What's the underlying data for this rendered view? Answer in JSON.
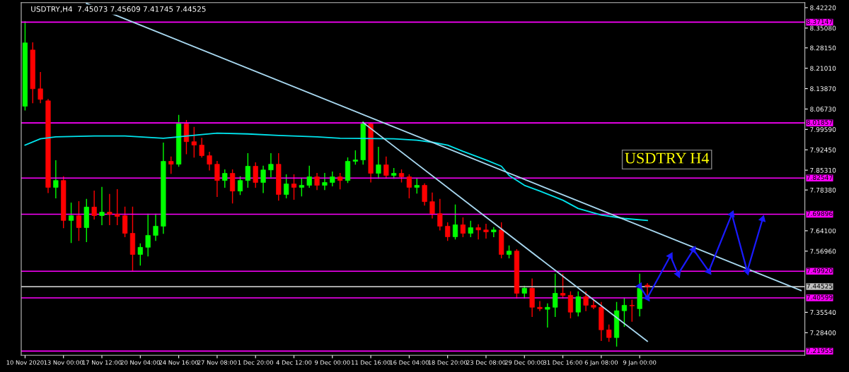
{
  "chart_data": {
    "type": "candlestick",
    "title": "USDTRY,H4  7.45073 7.45609 7.41745 7.44525",
    "annotations": [
      "USDTRY H4"
    ],
    "categories": [
      "10 Nov 2020",
      null,
      null,
      null,
      null,
      "13 Nov 00:00",
      null,
      null,
      null,
      null,
      "17 Nov 12:00",
      null,
      null,
      null,
      null,
      "20 Nov 04:00",
      null,
      null,
      null,
      null,
      "24 Nov 16:00",
      null,
      null,
      null,
      null,
      "27 Nov 08:00",
      null,
      null,
      null,
      null,
      "1 Dec 20:00",
      null,
      null,
      null,
      null,
      "4 Dec 12:00",
      null,
      null,
      null,
      null,
      "9 Dec 00:00",
      null,
      null,
      null,
      null,
      "11 Dec 16:00",
      null,
      null,
      null,
      null,
      "16 Dec 04:00",
      null,
      null,
      null,
      null,
      "18 Dec 20:00",
      null,
      null,
      null,
      null,
      "23 Dec 08:00",
      null,
      null,
      null,
      null,
      "29 Dec 00:00",
      null,
      null,
      null,
      null,
      "31 Dec 16:00",
      null,
      null,
      null,
      null,
      "6 Jan 08:00",
      null,
      null,
      null,
      null,
      "9 Jan 00:00",
      null,
      null,
      null,
      null,
      null,
      null,
      null,
      null,
      null,
      null,
      null,
      null,
      null,
      null,
      null,
      null,
      null,
      null,
      null,
      null,
      null
    ],
    "ohlc": [
      [
        8.077,
        8.373,
        8.064,
        8.299
      ],
      [
        8.274,
        8.299,
        8.089,
        8.138
      ],
      [
        8.138,
        8.195,
        8.089,
        8.101
      ],
      [
        8.096,
        8.101,
        7.775,
        7.793
      ],
      [
        7.793,
        7.886,
        7.756,
        7.817
      ],
      [
        7.817,
        7.83,
        7.652,
        7.677
      ],
      [
        7.677,
        7.738,
        7.6,
        7.694
      ],
      [
        7.694,
        7.743,
        7.607,
        7.652
      ],
      [
        7.652,
        7.751,
        7.603,
        7.724
      ],
      [
        7.724,
        7.78,
        7.682,
        7.694
      ],
      [
        7.694,
        7.793,
        7.662,
        7.706
      ],
      [
        7.706,
        7.768,
        7.662,
        7.699
      ],
      [
        7.699,
        7.785,
        7.662,
        7.691
      ],
      [
        7.694,
        7.724,
        7.62,
        7.632
      ],
      [
        7.632,
        7.724,
        7.501,
        7.558
      ],
      [
        7.558,
        7.595,
        7.521,
        7.583
      ],
      [
        7.583,
        7.699,
        7.553,
        7.625
      ],
      [
        7.625,
        7.699,
        7.607,
        7.657
      ],
      [
        7.657,
        7.948,
        7.632,
        7.884
      ],
      [
        7.884,
        7.899,
        7.842,
        7.874
      ],
      [
        7.874,
        8.045,
        7.867,
        8.015
      ],
      [
        8.015,
        8.027,
        7.911,
        7.953
      ],
      [
        7.953,
        8.003,
        7.899,
        7.941
      ],
      [
        7.941,
        7.965,
        7.899,
        7.904
      ],
      [
        7.904,
        7.916,
        7.854,
        7.874
      ],
      [
        7.874,
        7.884,
        7.761,
        7.817
      ],
      [
        7.817,
        7.854,
        7.793,
        7.842
      ],
      [
        7.842,
        7.854,
        7.738,
        7.78
      ],
      [
        7.78,
        7.83,
        7.768,
        7.817
      ],
      [
        7.817,
        7.911,
        7.793,
        7.867
      ],
      [
        7.867,
        7.879,
        7.793,
        7.81
      ],
      [
        7.81,
        7.867,
        7.775,
        7.854
      ],
      [
        7.854,
        7.911,
        7.83,
        7.874
      ],
      [
        7.874,
        7.911,
        7.748,
        7.768
      ],
      [
        7.768,
        7.837,
        7.756,
        7.805
      ],
      [
        7.805,
        7.837,
        7.751,
        7.793
      ],
      [
        7.793,
        7.822,
        7.763,
        7.8
      ],
      [
        7.8,
        7.867,
        7.793,
        7.83
      ],
      [
        7.83,
        7.842,
        7.785,
        7.8
      ],
      [
        7.8,
        7.842,
        7.785,
        7.81
      ],
      [
        7.81,
        7.847,
        7.798,
        7.83
      ],
      [
        7.83,
        7.842,
        7.788,
        7.817
      ],
      [
        7.817,
        7.896,
        7.81,
        7.884
      ],
      [
        7.884,
        7.921,
        7.874,
        7.889
      ],
      [
        7.889,
        8.022,
        7.874,
        8.015
      ],
      [
        8.015,
        8.02,
        7.812,
        7.842
      ],
      [
        7.842,
        7.933,
        7.825,
        7.872
      ],
      [
        7.872,
        7.899,
        7.825,
        7.835
      ],
      [
        7.835,
        7.859,
        7.825,
        7.842
      ],
      [
        7.842,
        7.854,
        7.812,
        7.83
      ],
      [
        7.83,
        7.837,
        7.756,
        7.793
      ],
      [
        7.793,
        7.822,
        7.773,
        7.8
      ],
      [
        7.8,
        7.805,
        7.731,
        7.743
      ],
      [
        7.743,
        7.773,
        7.686,
        7.701
      ],
      [
        7.701,
        7.751,
        7.644,
        7.657
      ],
      [
        7.657,
        7.669,
        7.607,
        7.62
      ],
      [
        7.62,
        7.731,
        7.612,
        7.662
      ],
      [
        7.662,
        7.686,
        7.62,
        7.632
      ],
      [
        7.632,
        7.674,
        7.62,
        7.652
      ],
      [
        7.652,
        7.662,
        7.612,
        7.644
      ],
      [
        7.644,
        7.664,
        7.615,
        7.637
      ],
      [
        7.637,
        7.652,
        7.62,
        7.644
      ],
      [
        7.644,
        7.669,
        7.546,
        7.558
      ],
      [
        7.558,
        7.588,
        7.546,
        7.57
      ],
      [
        7.57,
        7.575,
        7.405,
        7.422
      ],
      [
        7.422,
        7.447,
        7.405,
        7.44
      ],
      [
        7.44,
        7.472,
        7.341,
        7.373
      ],
      [
        7.373,
        7.393,
        7.361,
        7.368
      ],
      [
        7.366,
        7.385,
        7.304,
        7.373
      ],
      [
        7.373,
        7.489,
        7.341,
        7.422
      ],
      [
        7.422,
        7.489,
        7.405,
        7.415
      ],
      [
        7.415,
        7.427,
        7.336,
        7.356
      ],
      [
        7.356,
        7.427,
        7.343,
        7.41
      ],
      [
        7.41,
        7.427,
        7.361,
        7.38
      ],
      [
        7.38,
        7.398,
        7.368,
        7.373
      ],
      [
        7.373,
        7.39,
        7.257,
        7.294
      ],
      [
        7.294,
        7.311,
        7.254,
        7.267
      ],
      [
        7.267,
        7.39,
        7.237,
        7.361
      ],
      [
        7.361,
        7.405,
        7.306,
        7.38
      ],
      [
        7.38,
        7.398,
        7.324,
        7.378
      ],
      [
        7.368,
        7.489,
        7.343,
        7.44
      ],
      [
        7.45073,
        7.45609,
        7.41745,
        7.44525
      ],
      null,
      null,
      null,
      null,
      null,
      null,
      null,
      null,
      null,
      null,
      null,
      null,
      null,
      null,
      null,
      null,
      null,
      null,
      null,
      null
    ],
    "series": [
      {
        "type": "line",
        "color": "#00e5ee",
        "values": [
          7.941,
          null,
          7.963,
          null,
          7.97,
          null,
          null,
          null,
          null,
          7.973,
          null,
          null,
          null,
          7.973,
          null,
          null,
          null,
          null,
          7.965,
          null,
          7.97,
          null,
          null,
          7.978,
          null,
          7.983,
          null,
          null,
          null,
          7.98,
          null,
          null,
          null,
          7.975,
          null,
          null,
          null,
          null,
          7.97,
          null,
          null,
          7.965,
          null,
          null,
          null,
          null,
          null,
          null,
          7.963,
          null,
          null,
          7.958,
          null,
          7.951,
          null,
          7.941,
          null,
          7.919,
          null,
          null,
          7.889,
          null,
          7.867,
          7.835,
          null,
          7.8,
          null,
          7.78,
          null,
          null,
          7.748,
          null,
          7.719,
          null,
          null,
          7.696,
          null,
          null,
          7.684,
          null,
          null,
          7.677,
          null,
          null,
          null,
          null,
          null,
          null,
          null,
          null,
          null,
          null,
          null,
          null,
          null,
          null,
          null,
          null,
          null,
          null,
          null,
          null
        ]
      },
      {
        "type": "line",
        "color": "#a8d8f0",
        "values": [
          null,
          null,
          null,
          null,
          null,
          null,
          null,
          null,
          8.437,
          null,
          null,
          null,
          null,
          null,
          null,
          null,
          null,
          null,
          null,
          null,
          null,
          null,
          null,
          null,
          null,
          null,
          null,
          null,
          null,
          null,
          null,
          null,
          null,
          null,
          null,
          null,
          null,
          null,
          null,
          null,
          null,
          null,
          null,
          null,
          null,
          null,
          null,
          null,
          null,
          null,
          null,
          null,
          null,
          null,
          null,
          null,
          null,
          null,
          null,
          null,
          null,
          null,
          null,
          null,
          null,
          null,
          null,
          null,
          null,
          null,
          null,
          null,
          null,
          null,
          null,
          null,
          null,
          null,
          null,
          null,
          null,
          null,
          null,
          null,
          null,
          null,
          null,
          null,
          null,
          null,
          null,
          null,
          null,
          null,
          null,
          null,
          null,
          null,
          null,
          null,
          null,
          7.432
        ]
      },
      {
        "type": "line",
        "color": "#a8d8f0",
        "values": [
          null,
          null,
          null,
          null,
          null,
          null,
          null,
          null,
          null,
          null,
          null,
          null,
          null,
          null,
          null,
          null,
          null,
          null,
          null,
          null,
          null,
          null,
          null,
          null,
          null,
          null,
          null,
          null,
          null,
          null,
          null,
          null,
          null,
          null,
          null,
          null,
          null,
          null,
          null,
          null,
          null,
          null,
          null,
          null,
          8.02,
          null,
          null,
          null,
          null,
          null,
          null,
          null,
          null,
          null,
          null,
          null,
          null,
          null,
          null,
          null,
          null,
          null,
          null,
          null,
          null,
          null,
          null,
          null,
          null,
          null,
          null,
          null,
          null,
          null,
          null,
          null,
          null,
          null,
          null,
          null,
          null,
          7.254,
          null,
          null,
          null,
          null,
          null,
          null,
          null,
          null,
          null,
          null,
          null,
          null,
          null,
          null,
          null,
          null,
          null,
          null,
          null,
          null
        ]
      },
      {
        "type": "line",
        "color": "#1a1aff",
        "marker": "triangle",
        "values": [
          null,
          null,
          null,
          null,
          null,
          null,
          null,
          null,
          null,
          null,
          null,
          null,
          null,
          null,
          null,
          null,
          null,
          null,
          null,
          null,
          null,
          null,
          null,
          null,
          null,
          null,
          null,
          null,
          null,
          null,
          null,
          null,
          null,
          null,
          null,
          null,
          null,
          null,
          null,
          null,
          null,
          null,
          null,
          null,
          null,
          null,
          null,
          null,
          null,
          null,
          null,
          null,
          null,
          null,
          null,
          null,
          null,
          null,
          null,
          null,
          null,
          null,
          null,
          null,
          null,
          null,
          null,
          null,
          null,
          null,
          null,
          null,
          null,
          null,
          null,
          null,
          null,
          null,
          null,
          null,
          7.447,
          7.406,
          null,
          null,
          7.553,
          7.489,
          null,
          7.575,
          null,
          7.499,
          null,
          null,
          7.699,
          null,
          7.499,
          null,
          7.682,
          null,
          null,
          null,
          null,
          null
        ]
      }
    ],
    "ref_lines": [
      {
        "axis": "y",
        "value": 8.37147,
        "label": "8.37147",
        "color": "#ff00ff"
      },
      {
        "axis": "y",
        "value": 8.01857,
        "label": "8.01857",
        "color": "#ff00ff"
      },
      {
        "axis": "y",
        "value": 7.82547,
        "label": "7.82547",
        "color": "#ff00ff"
      },
      {
        "axis": "y",
        "value": 7.69896,
        "label": "7.69896",
        "color": "#ff00ff"
      },
      {
        "axis": "y",
        "value": 7.4992,
        "label": "7.49920",
        "color": "#ff00ff"
      },
      {
        "axis": "y",
        "value": 7.44525,
        "label": "7.44525",
        "color": "#c0c0c0"
      },
      {
        "axis": "y",
        "value": 7.40599,
        "label": "7.40599",
        "color": "#ff00ff"
      },
      {
        "axis": "y",
        "value": 7.21955,
        "label": "7.21955",
        "color": "#ff00ff"
      }
    ],
    "ylim": [
      7.205,
      8.44
    ],
    "yticks": [
      {
        "value": 8.4222,
        "label": "8.42220"
      },
      {
        "value": 8.3508,
        "label": "8.35080"
      },
      {
        "value": 8.2815,
        "label": "8.28150"
      },
      {
        "value": 8.2101,
        "label": "8.21010"
      },
      {
        "value": 8.1387,
        "label": "8.13870"
      },
      {
        "value": 8.0673,
        "label": "8.06730"
      },
      {
        "value": 7.9959,
        "label": "7.99590"
      },
      {
        "value": 7.9245,
        "label": "7.92450"
      },
      {
        "value": 7.8531,
        "label": "7.85310"
      },
      {
        "value": 7.7838,
        "label": "7.78380"
      },
      {
        "value": 7.641,
        "label": "7.64100"
      },
      {
        "value": 7.5696,
        "label": "7.56960"
      },
      {
        "value": 7.3554,
        "label": "7.35540"
      },
      {
        "value": 7.284,
        "label": "7.28400"
      }
    ],
    "grid": false,
    "legend": false
  }
}
